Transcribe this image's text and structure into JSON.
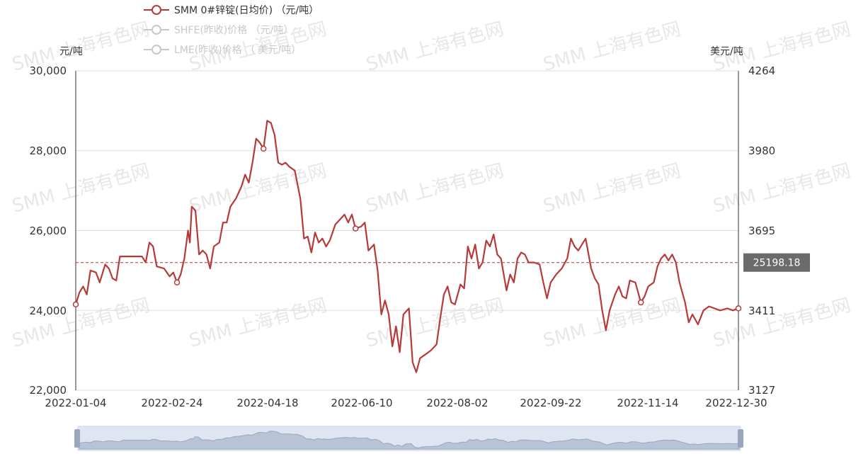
{
  "chart_data": {
    "type": "line",
    "legend": [
      {
        "name": "SMM 0#锌锭(日均价) （元/吨）",
        "color": "#b73a3a",
        "active": true
      },
      {
        "name": "SHFE(昨收)价格 （元/吨）",
        "color": "#c8c8c8",
        "active": false
      },
      {
        "name": "LME(昨收)价格 （ 美元/吨）",
        "color": "#c8c8c8",
        "active": false
      }
    ],
    "y_left_unit": "元/吨",
    "y_right_unit": "美元/吨",
    "y_left_ticks": [
      "30,000",
      "28,000",
      "26,000",
      "24,000",
      "22,000"
    ],
    "y_right_ticks": [
      "4264",
      "3980",
      "3695",
      "3411",
      "3127"
    ],
    "ylim": [
      22000,
      30000
    ],
    "x_ticks": [
      "2022-01-04",
      "2022-02-24",
      "2022-04-18",
      "2022-06-10",
      "2022-08-02",
      "2022-09-22",
      "2022-11-14",
      "2022-12-30"
    ],
    "xlim": [
      "2022-01-04",
      "2022-12-30"
    ],
    "mark_line": {
      "value": 25198.18,
      "label": "25198.18",
      "color": "#b73a3a",
      "style": "dashed"
    },
    "grid": true,
    "watermark": "SMM 上海有色网",
    "series": [
      {
        "name": "SMM 0#锌锭(日均价) （元/吨）",
        "color": "#b73a3a",
        "points": [
          {
            "date": "2022-01-04",
            "value": 24150
          },
          {
            "date": "2022-01-06",
            "value": 24450
          },
          {
            "date": "2022-01-08",
            "value": 24600
          },
          {
            "date": "2022-01-10",
            "value": 24400
          },
          {
            "date": "2022-01-12",
            "value": 25000
          },
          {
            "date": "2022-01-15",
            "value": 24950
          },
          {
            "date": "2022-01-17",
            "value": 24700
          },
          {
            "date": "2022-01-20",
            "value": 25150
          },
          {
            "date": "2022-01-22",
            "value": 25050
          },
          {
            "date": "2022-01-24",
            "value": 24800
          },
          {
            "date": "2022-01-26",
            "value": 24750
          },
          {
            "date": "2022-01-28",
            "value": 25350
          },
          {
            "date": "2022-02-09",
            "value": 25350
          },
          {
            "date": "2022-02-11",
            "value": 25200
          },
          {
            "date": "2022-02-13",
            "value": 25700
          },
          {
            "date": "2022-02-15",
            "value": 25600
          },
          {
            "date": "2022-02-17",
            "value": 25100
          },
          {
            "date": "2022-02-21",
            "value": 25050
          },
          {
            "date": "2022-02-24",
            "value": 24850
          },
          {
            "date": "2022-02-26",
            "value": 24950
          },
          {
            "date": "2022-02-28",
            "value": 24700
          },
          {
            "date": "2022-03-02",
            "value": 24900
          },
          {
            "date": "2022-03-04",
            "value": 25300
          },
          {
            "date": "2022-03-06",
            "value": 26000
          },
          {
            "date": "2022-03-07",
            "value": 25700
          },
          {
            "date": "2022-03-08",
            "value": 26600
          },
          {
            "date": "2022-03-10",
            "value": 26500
          },
          {
            "date": "2022-03-12",
            "value": 25400
          },
          {
            "date": "2022-03-14",
            "value": 25500
          },
          {
            "date": "2022-03-16",
            "value": 25400
          },
          {
            "date": "2022-03-18",
            "value": 25050
          },
          {
            "date": "2022-03-20",
            "value": 25600
          },
          {
            "date": "2022-03-23",
            "value": 25700
          },
          {
            "date": "2022-03-25",
            "value": 26200
          },
          {
            "date": "2022-03-27",
            "value": 26200
          },
          {
            "date": "2022-03-29",
            "value": 26600
          },
          {
            "date": "2022-04-01",
            "value": 26800
          },
          {
            "date": "2022-04-04",
            "value": 27100
          },
          {
            "date": "2022-04-06",
            "value": 27400
          },
          {
            "date": "2022-04-08",
            "value": 27200
          },
          {
            "date": "2022-04-10",
            "value": 27700
          },
          {
            "date": "2022-04-12",
            "value": 28300
          },
          {
            "date": "2022-04-14",
            "value": 28200
          },
          {
            "date": "2022-04-16",
            "value": 28050
          },
          {
            "date": "2022-04-18",
            "value": 28750
          },
          {
            "date": "2022-04-20",
            "value": 28700
          },
          {
            "date": "2022-04-22",
            "value": 28400
          },
          {
            "date": "2022-04-24",
            "value": 27700
          },
          {
            "date": "2022-04-26",
            "value": 27650
          },
          {
            "date": "2022-04-28",
            "value": 27700
          },
          {
            "date": "2022-04-30",
            "value": 27600
          },
          {
            "date": "2022-05-03",
            "value": 27500
          },
          {
            "date": "2022-05-06",
            "value": 26800
          },
          {
            "date": "2022-05-08",
            "value": 25800
          },
          {
            "date": "2022-05-10",
            "value": 25850
          },
          {
            "date": "2022-05-12",
            "value": 25450
          },
          {
            "date": "2022-05-14",
            "value": 25950
          },
          {
            "date": "2022-05-16",
            "value": 25700
          },
          {
            "date": "2022-05-18",
            "value": 25800
          },
          {
            "date": "2022-05-20",
            "value": 25600
          },
          {
            "date": "2022-05-22",
            "value": 25750
          },
          {
            "date": "2022-05-25",
            "value": 26150
          },
          {
            "date": "2022-05-28",
            "value": 26300
          },
          {
            "date": "2022-05-30",
            "value": 26400
          },
          {
            "date": "2022-06-01",
            "value": 26200
          },
          {
            "date": "2022-06-03",
            "value": 26400
          },
          {
            "date": "2022-06-05",
            "value": 26050
          },
          {
            "date": "2022-06-08",
            "value": 26100
          },
          {
            "date": "2022-06-10",
            "value": 26200
          },
          {
            "date": "2022-06-12",
            "value": 25500
          },
          {
            "date": "2022-06-15",
            "value": 25650
          },
          {
            "date": "2022-06-17",
            "value": 25000
          },
          {
            "date": "2022-06-19",
            "value": 23900
          },
          {
            "date": "2022-06-21",
            "value": 24250
          },
          {
            "date": "2022-06-23",
            "value": 23900
          },
          {
            "date": "2022-06-25",
            "value": 23100
          },
          {
            "date": "2022-06-27",
            "value": 23600
          },
          {
            "date": "2022-06-29",
            "value": 22950
          },
          {
            "date": "2022-07-01",
            "value": 23900
          },
          {
            "date": "2022-07-04",
            "value": 24050
          },
          {
            "date": "2022-07-06",
            "value": 22700
          },
          {
            "date": "2022-07-08",
            "value": 22450
          },
          {
            "date": "2022-07-10",
            "value": 22800
          },
          {
            "date": "2022-07-13",
            "value": 22900
          },
          {
            "date": "2022-07-16",
            "value": 23000
          },
          {
            "date": "2022-07-19",
            "value": 23150
          },
          {
            "date": "2022-07-21",
            "value": 23800
          },
          {
            "date": "2022-07-23",
            "value": 24400
          },
          {
            "date": "2022-07-25",
            "value": 24600
          },
          {
            "date": "2022-07-27",
            "value": 24200
          },
          {
            "date": "2022-07-29",
            "value": 24150
          },
          {
            "date": "2022-08-01",
            "value": 24650
          },
          {
            "date": "2022-08-03",
            "value": 24550
          },
          {
            "date": "2022-08-05",
            "value": 25600
          },
          {
            "date": "2022-08-07",
            "value": 25300
          },
          {
            "date": "2022-08-09",
            "value": 25650
          },
          {
            "date": "2022-08-11",
            "value": 25050
          },
          {
            "date": "2022-08-13",
            "value": 25200
          },
          {
            "date": "2022-08-15",
            "value": 25750
          },
          {
            "date": "2022-08-17",
            "value": 25600
          },
          {
            "date": "2022-08-19",
            "value": 25900
          },
          {
            "date": "2022-08-21",
            "value": 25400
          },
          {
            "date": "2022-08-23",
            "value": 25300
          },
          {
            "date": "2022-08-26",
            "value": 24500
          },
          {
            "date": "2022-08-28",
            "value": 24900
          },
          {
            "date": "2022-08-30",
            "value": 24700
          },
          {
            "date": "2022-09-01",
            "value": 25300
          },
          {
            "date": "2022-09-03",
            "value": 25450
          },
          {
            "date": "2022-09-05",
            "value": 25400
          },
          {
            "date": "2022-09-07",
            "value": 25200
          },
          {
            "date": "2022-09-10",
            "value": 25200
          },
          {
            "date": "2022-09-13",
            "value": 25150
          },
          {
            "date": "2022-09-15",
            "value": 24700
          },
          {
            "date": "2022-09-17",
            "value": 24300
          },
          {
            "date": "2022-09-19",
            "value": 24700
          },
          {
            "date": "2022-09-22",
            "value": 24900
          },
          {
            "date": "2022-09-25",
            "value": 25050
          },
          {
            "date": "2022-09-28",
            "value": 25300
          },
          {
            "date": "2022-09-30",
            "value": 25800
          },
          {
            "date": "2022-10-02",
            "value": 25600
          },
          {
            "date": "2022-10-04",
            "value": 25500
          },
          {
            "date": "2022-10-06",
            "value": 25650
          },
          {
            "date": "2022-10-08",
            "value": 25800
          },
          {
            "date": "2022-10-11",
            "value": 25050
          },
          {
            "date": "2022-10-13",
            "value": 24800
          },
          {
            "date": "2022-10-15",
            "value": 24650
          },
          {
            "date": "2022-10-17",
            "value": 24000
          },
          {
            "date": "2022-10-19",
            "value": 23500
          },
          {
            "date": "2022-10-21",
            "value": 24000
          },
          {
            "date": "2022-10-24",
            "value": 24400
          },
          {
            "date": "2022-10-26",
            "value": 24600
          },
          {
            "date": "2022-10-28",
            "value": 24350
          },
          {
            "date": "2022-10-30",
            "value": 24300
          },
          {
            "date": "2022-11-01",
            "value": 24750
          },
          {
            "date": "2022-11-04",
            "value": 24700
          },
          {
            "date": "2022-11-07",
            "value": 24200
          },
          {
            "date": "2022-11-09",
            "value": 24350
          },
          {
            "date": "2022-11-11",
            "value": 24600
          },
          {
            "date": "2022-11-14",
            "value": 24700
          },
          {
            "date": "2022-11-16",
            "value": 25100
          },
          {
            "date": "2022-11-18",
            "value": 25300
          },
          {
            "date": "2022-11-20",
            "value": 25400
          },
          {
            "date": "2022-11-22",
            "value": 25250
          },
          {
            "date": "2022-11-24",
            "value": 25400
          },
          {
            "date": "2022-11-26",
            "value": 25200
          },
          {
            "date": "2022-11-28",
            "value": 24700
          },
          {
            "date": "2022-12-01",
            "value": 24200
          },
          {
            "date": "2022-12-03",
            "value": 23700
          },
          {
            "date": "2022-12-05",
            "value": 23900
          },
          {
            "date": "2022-12-08",
            "value": 23650
          },
          {
            "date": "2022-12-11",
            "value": 24000
          },
          {
            "date": "2022-12-14",
            "value": 24100
          },
          {
            "date": "2022-12-17",
            "value": 24050
          },
          {
            "date": "2022-12-20",
            "value": 24000
          },
          {
            "date": "2022-12-24",
            "value": 24050
          },
          {
            "date": "2022-12-27",
            "value": 24000
          },
          {
            "date": "2022-12-30",
            "value": 24050
          }
        ],
        "markers": [
          "2022-01-04",
          "2022-02-28",
          "2022-04-16",
          "2022-06-05",
          "2022-11-07",
          "2022-12-30"
        ]
      }
    ]
  }
}
